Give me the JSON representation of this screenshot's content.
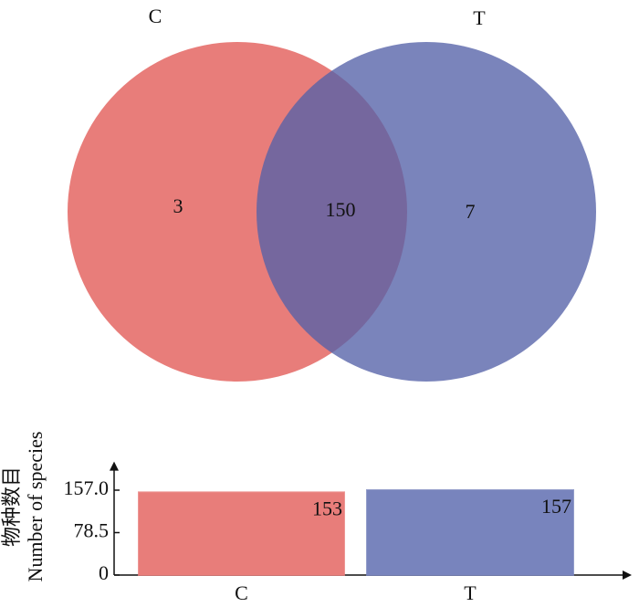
{
  "chart_data": [
    {
      "type": "venn",
      "series": [
        {
          "name": "C",
          "color": "#e87d7a",
          "only": 3
        },
        {
          "name": "T",
          "color": "#5462a8",
          "only": 7
        }
      ],
      "intersection": 150
    },
    {
      "type": "bar",
      "categories": [
        "C",
        "T"
      ],
      "values": [
        153,
        157
      ],
      "colors": [
        "#e87d7a",
        "#7884bd"
      ],
      "ylabel": [
        "物种数目",
        "Number of species"
      ],
      "ylim": [
        0,
        210
      ],
      "yticks": [
        0,
        78.5,
        {
          "value": 157,
          "label": "157.0"
        }
      ]
    }
  ]
}
